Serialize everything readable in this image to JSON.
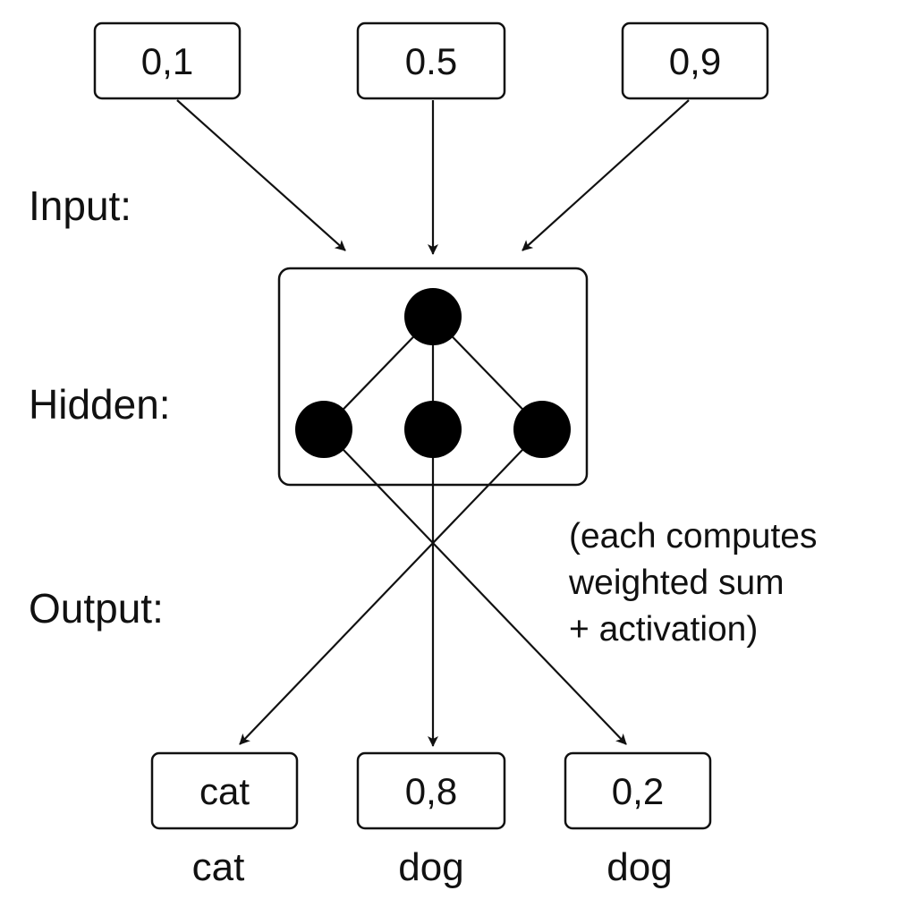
{
  "layer_labels": {
    "input": "Input:",
    "hidden": "Hidden:",
    "output": "Output:"
  },
  "inputs": [
    {
      "value": "0,1"
    },
    {
      "value": "0.5"
    },
    {
      "value": "0,9"
    }
  ],
  "outputs": [
    {
      "value": "cat",
      "caption": "cat"
    },
    {
      "value": "0,8",
      "caption": "dog"
    },
    {
      "value": "0,2",
      "caption": "dog"
    }
  ],
  "note": {
    "lines": [
      "(each computes",
      "weighted sum",
      "+ activation)"
    ]
  },
  "colors": {
    "ink": "#111111",
    "node": "#000000",
    "background": "#ffffff"
  }
}
